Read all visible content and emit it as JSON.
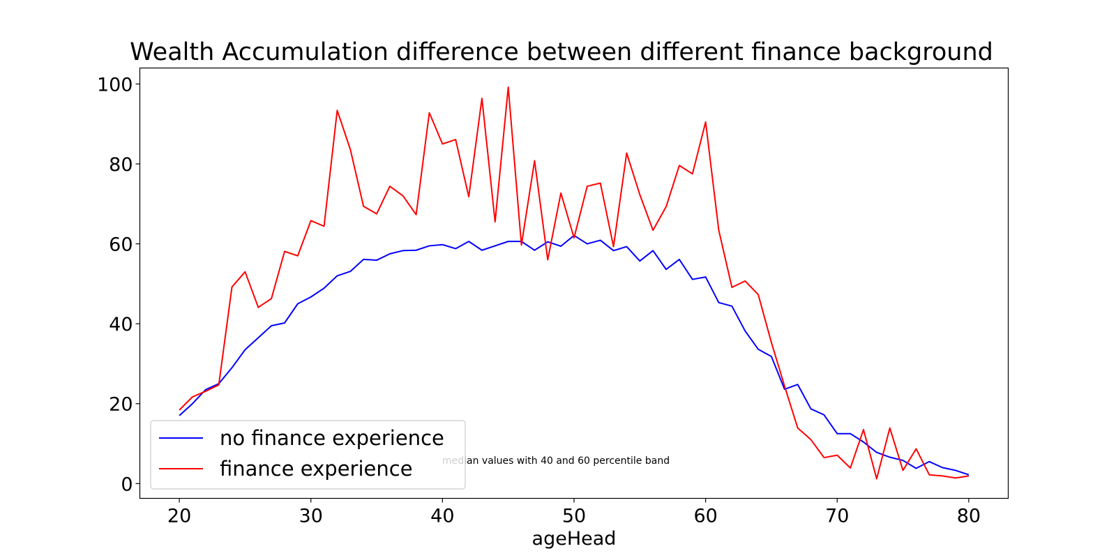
{
  "chart_data": {
    "type": "line",
    "title": "Wealth Accumulation difference between different finance background",
    "xlabel": "ageHead",
    "ylabel": "",
    "xlim": [
      17,
      83
    ],
    "ylim": [
      -3.7,
      104
    ],
    "xticks": [
      20,
      30,
      40,
      50,
      60,
      70,
      80
    ],
    "yticks": [
      0,
      20,
      40,
      60,
      80,
      100
    ],
    "grid": false,
    "legend_position": "lower-left",
    "annotation": "median values with 40 and 60 percentile band",
    "x": [
      20,
      21,
      22,
      23,
      24,
      25,
      26,
      27,
      28,
      29,
      30,
      31,
      32,
      33,
      34,
      35,
      36,
      37,
      38,
      39,
      40,
      41,
      42,
      43,
      44,
      45,
      46,
      47,
      48,
      49,
      50,
      51,
      52,
      53,
      54,
      55,
      56,
      57,
      58,
      59,
      60,
      61,
      62,
      63,
      64,
      65,
      66,
      67,
      68,
      69,
      70,
      71,
      72,
      73,
      74,
      75,
      76,
      77,
      78,
      79,
      80
    ],
    "series": [
      {
        "name": "no finance experience",
        "color": "#0000ff",
        "values": [
          17,
          20,
          23.5,
          25,
          29,
          33.5,
          36.5,
          39.5,
          40.2,
          45,
          46.7,
          48.9,
          52,
          53.1,
          56.1,
          55.9,
          57.5,
          58.3,
          58.4,
          59.5,
          59.8,
          58.8,
          60.6,
          58.4,
          59.5,
          60.6,
          60.6,
          58.4,
          60.5,
          59.4,
          62.1,
          60,
          60.9,
          58.3,
          59.3,
          55.7,
          58.3,
          53.6,
          56.1,
          51.1,
          51.7,
          45.3,
          44.4,
          38.2,
          33.6,
          31.8,
          23.6,
          24.8,
          18.7,
          17.2,
          12.5,
          12.5,
          10.4,
          7.8,
          6.6,
          5.8,
          3.8,
          5.5,
          4,
          3.3,
          2.2
        ]
      },
      {
        "name": "finance experience",
        "color": "#ff0000",
        "values": [
          18.4,
          21.7,
          23.1,
          24.7,
          49.2,
          53,
          44.1,
          46.3,
          58.1,
          57,
          65.8,
          64.4,
          93.4,
          83.6,
          69.4,
          67.5,
          74.4,
          72,
          67.3,
          92.8,
          85,
          86.1,
          71.8,
          96.4,
          65.5,
          99.2,
          59.7,
          80.8,
          56,
          72.7,
          61.5,
          74.4,
          75.2,
          59.3,
          82.7,
          72.3,
          63.4,
          69.3,
          79.6,
          77.5,
          90.5,
          63.4,
          49.1,
          50.7,
          47.3,
          35.3,
          24.4,
          13.9,
          11,
          6.5,
          7.1,
          3.9,
          13.5,
          1.2,
          13.9,
          3.3,
          8.7,
          2.2,
          1.9,
          1.4,
          1.9
        ]
      }
    ]
  }
}
